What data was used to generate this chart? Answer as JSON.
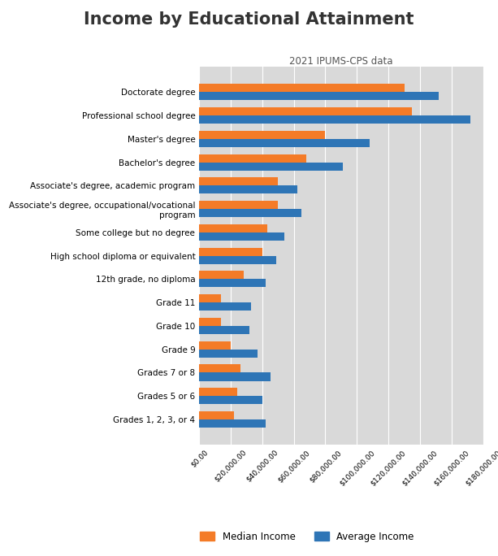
{
  "title": "Income by Educational Attainment",
  "subtitle": "2021 IPUMS-CPS data",
  "categories": [
    "Doctorate degree",
    "Professional school degree",
    "Master's degree",
    "Bachelor's degree",
    "Associate's degree, academic program",
    "Associate's degree, occupational/vocational\nprogram",
    "Some college but no degree",
    "High school diploma or equivalent",
    "12th grade, no diploma",
    "Grade 11",
    "Grade 10",
    "Grade 9",
    "Grades 7 or 8",
    "Grades 5 or 6",
    "Grades 1, 2, 3, or 4"
  ],
  "median_income": [
    130000,
    135000,
    80000,
    68000,
    50000,
    50000,
    43000,
    40000,
    28000,
    14000,
    14000,
    20000,
    26000,
    24000,
    22000
  ],
  "average_income": [
    152000,
    172000,
    108000,
    91000,
    62000,
    65000,
    54000,
    49000,
    42000,
    33000,
    32000,
    37000,
    45000,
    40000,
    42000
  ],
  "median_color": "#F47B27",
  "average_color": "#2E75B6",
  "plot_bg_color": "#D9D9D9",
  "xlim": [
    0,
    180000
  ],
  "xtick_step": 20000,
  "bar_height": 0.35,
  "legend_labels": [
    "Median Income",
    "Average Income"
  ]
}
